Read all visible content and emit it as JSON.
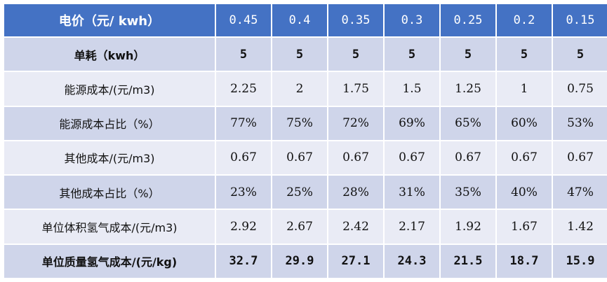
{
  "table": {
    "header": {
      "label": "电价（元/ kwh）",
      "values": [
        "0.45",
        "0.4",
        "0.35",
        "0.3",
        "0.25",
        "0.2",
        "0.15"
      ]
    },
    "rows": [
      {
        "label": "单耗（kwh）",
        "values": [
          "5",
          "5",
          "5",
          "5",
          "5",
          "5",
          "5"
        ],
        "bold": true
      },
      {
        "label": "能源成本/(元/m3)",
        "values": [
          "2.25",
          "2",
          "1.75",
          "1.5",
          "1.25",
          "1",
          "0.75"
        ],
        "bold": false
      },
      {
        "label": "能源成本占比（%）",
        "values": [
          "77%",
          "75%",
          "72%",
          "69%",
          "65%",
          "60%",
          "53%"
        ],
        "bold": false
      },
      {
        "label": "其他成本/(元/m3)",
        "values": [
          "0.67",
          "0.67",
          "0.67",
          "0.67",
          "0.67",
          "0.67",
          "0.67"
        ],
        "bold": false
      },
      {
        "label": "其他成本占比（%）",
        "values": [
          "23%",
          "25%",
          "28%",
          "31%",
          "35%",
          "40%",
          "47%"
        ],
        "bold": false
      },
      {
        "label": "单位体积氢气成本/(元/m3)",
        "values": [
          "2.92",
          "2.67",
          "2.42",
          "2.17",
          "1.92",
          "1.67",
          "1.42"
        ],
        "bold": false
      },
      {
        "label": "单位质量氢气成本/(元/kg)",
        "values": [
          "32.7",
          "29.9",
          "27.1",
          "24.3",
          "21.5",
          "18.7",
          "15.9"
        ],
        "bold": true
      }
    ]
  },
  "colors": {
    "header_bg": "#4472c4",
    "header_text": "#ffffff",
    "row_band_dark": "#cfd5ea",
    "row_band_light": "#e9ebf5"
  }
}
